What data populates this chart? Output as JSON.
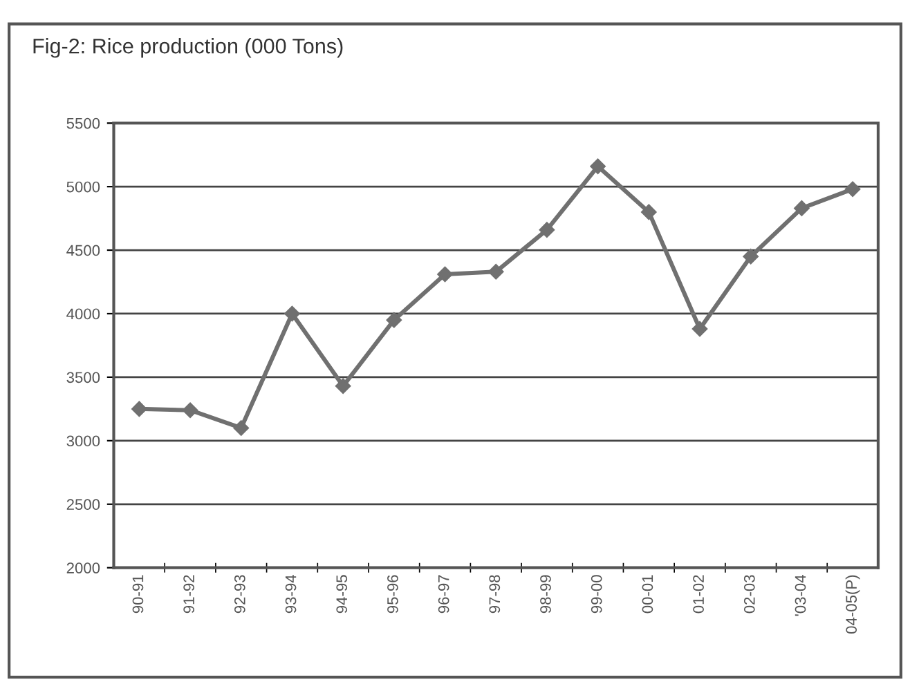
{
  "chart_data": {
    "type": "line",
    "title": "Fig-2: Rice production (000 Tons)",
    "categories": [
      "90-91",
      "91-92",
      "92-93",
      "93-94",
      "94-95",
      "95-96",
      "96-97",
      "97-98",
      "98-99",
      "99-00",
      "00-01",
      "01-02",
      "02-03",
      "'03-04",
      "04-05(P)"
    ],
    "series": [
      {
        "color": "#707070",
        "values": [
          3250,
          3240,
          3100,
          4000,
          3430,
          3950,
          4310,
          4330,
          4660,
          5160,
          4800,
          3880,
          4450,
          4830,
          4980
        ]
      }
    ],
    "ylim": [
      2000,
      5500
    ],
    "yticks": [
      2000,
      2500,
      3000,
      3500,
      4000,
      4500,
      5000,
      5500
    ],
    "grid": "y",
    "marker": "diamond",
    "line_style": "solid",
    "legend": false
  }
}
